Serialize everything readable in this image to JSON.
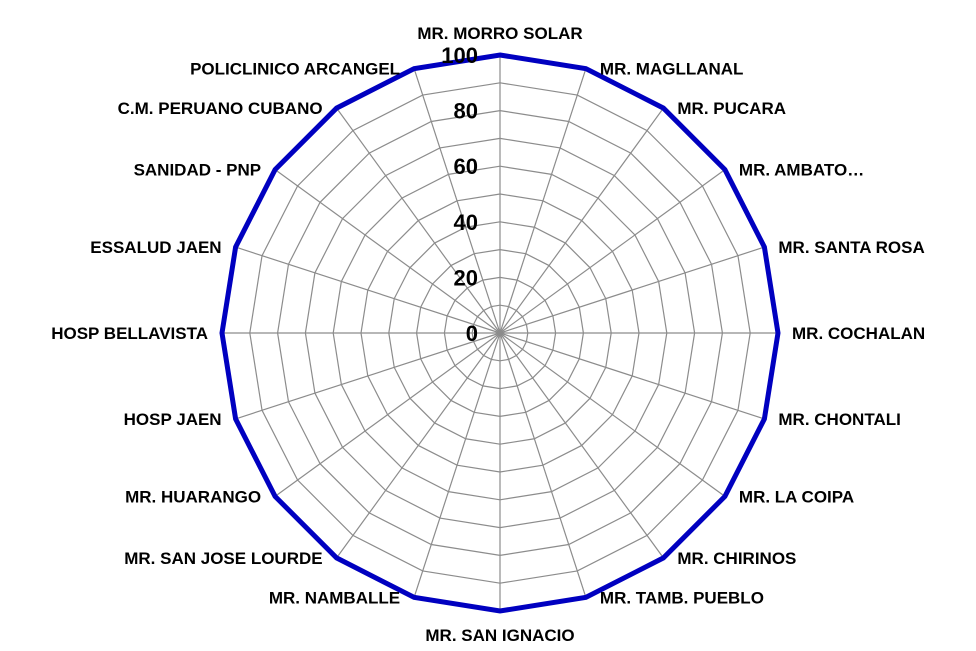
{
  "chart_data": {
    "type": "radar",
    "title": "",
    "categories": [
      "MR. MORRO SOLAR",
      "MR. MAGLLANAL",
      "MR. PUCARA",
      "MR. AMBATO…",
      "MR. SANTA ROSA",
      "MR. COCHALAN",
      "MR. CHONTALI",
      "MR. LA COIPA",
      "MR. CHIRINOS",
      "MR. TAMB. PUEBLO",
      "MR. SAN IGNACIO",
      "MR. NAMBALLE",
      "MR. SAN JOSE LOURDE",
      "MR. HUARANGO",
      "HOSP JAEN",
      "HOSP BELLAVISTA",
      "ESSALUD JAEN",
      "SANIDAD - PNP",
      "C.M. PERUANO CUBANO",
      "POLICLINICO ARCANGEL"
    ],
    "series": [
      {
        "values": [
          100,
          100,
          100,
          100,
          100,
          100,
          100,
          100,
          100,
          100,
          100,
          100,
          100,
          100,
          100,
          100,
          100,
          100,
          100,
          100
        ],
        "color": "#0000c0"
      }
    ],
    "radial_ticks": [
      "0",
      "20",
      "40",
      "60",
      "80",
      "100"
    ],
    "rlim": [
      0,
      100
    ],
    "grid_color": "#8c8c8c",
    "grid": true,
    "legend": "none"
  }
}
